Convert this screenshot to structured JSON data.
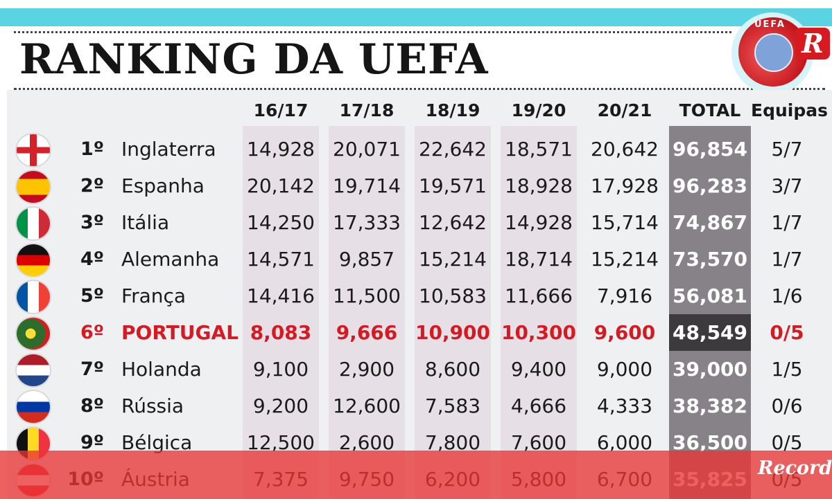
{
  "title": "RANKING DA UEFA",
  "logo": {
    "emblem_text": "UEFA",
    "letter": "R"
  },
  "watermark": "Record",
  "columns": {
    "seasons": [
      "16/17",
      "17/18",
      "18/19",
      "19/20",
      "20/21"
    ],
    "total": "TOTAL",
    "teams": "Equipas"
  },
  "rows": [
    {
      "rank": "1º",
      "country": "Inglaterra",
      "flag": "england-flag-icon",
      "values": [
        "14,928",
        "20,071",
        "22,642",
        "18,571",
        "20,642"
      ],
      "total": "96,854",
      "teams": "5/7"
    },
    {
      "rank": "2º",
      "country": "Espanha",
      "flag": "spain-flag-icon",
      "values": [
        "20,142",
        "19,714",
        "19,571",
        "18,928",
        "17,928"
      ],
      "total": "96,283",
      "teams": "3/7"
    },
    {
      "rank": "3º",
      "country": "Itália",
      "flag": "italy-flag-icon",
      "values": [
        "14,250",
        "17,333",
        "12,642",
        "14,928",
        "15,714"
      ],
      "total": "74,867",
      "teams": "1/7"
    },
    {
      "rank": "4º",
      "country": "Alemanha",
      "flag": "germany-flag-icon",
      "values": [
        "14,571",
        "9,857",
        "15,214",
        "18,714",
        "15,214"
      ],
      "total": "73,570",
      "teams": "1/7"
    },
    {
      "rank": "5º",
      "country": "França",
      "flag": "france-flag-icon",
      "values": [
        "14,416",
        "11,500",
        "10,583",
        "11,666",
        "7,916"
      ],
      "total": "56,081",
      "teams": "1/6"
    },
    {
      "rank": "6º",
      "country": "PORTUGAL",
      "flag": "portugal-flag-icon",
      "values": [
        "8,083",
        "9,666",
        "10,900",
        "10,300",
        "9,600"
      ],
      "total": "48,549",
      "teams": "0/5"
    },
    {
      "rank": "7º",
      "country": "Holanda",
      "flag": "netherlands-flag-icon",
      "values": [
        "9,100",
        "2,900",
        "8,600",
        "9,400",
        "9,000"
      ],
      "total": "39,000",
      "teams": "1/5"
    },
    {
      "rank": "8º",
      "country": "Rússia",
      "flag": "russia-flag-icon",
      "values": [
        "9,200",
        "12,600",
        "7,583",
        "4,666",
        "4,333"
      ],
      "total": "38,382",
      "teams": "0/6"
    },
    {
      "rank": "9º",
      "country": "Bélgica",
      "flag": "belgium-flag-icon",
      "values": [
        "12,500",
        "2,600",
        "7,800",
        "7,600",
        "6,000"
      ],
      "total": "36,500",
      "teams": "0/5"
    },
    {
      "rank": "10º",
      "country": "Áustria",
      "flag": "austria-flag-icon",
      "values": [
        "7,375",
        "9,750",
        "6,200",
        "5,800",
        "6,700"
      ],
      "total": "35,825",
      "teams": "0/5"
    }
  ],
  "highlight_row": "PORTUGAL",
  "colors": {
    "accent_bar": "#5ad3e3",
    "highlight_text": "#d51a23",
    "total_column": "#878287",
    "overlay": "#e83434"
  }
}
